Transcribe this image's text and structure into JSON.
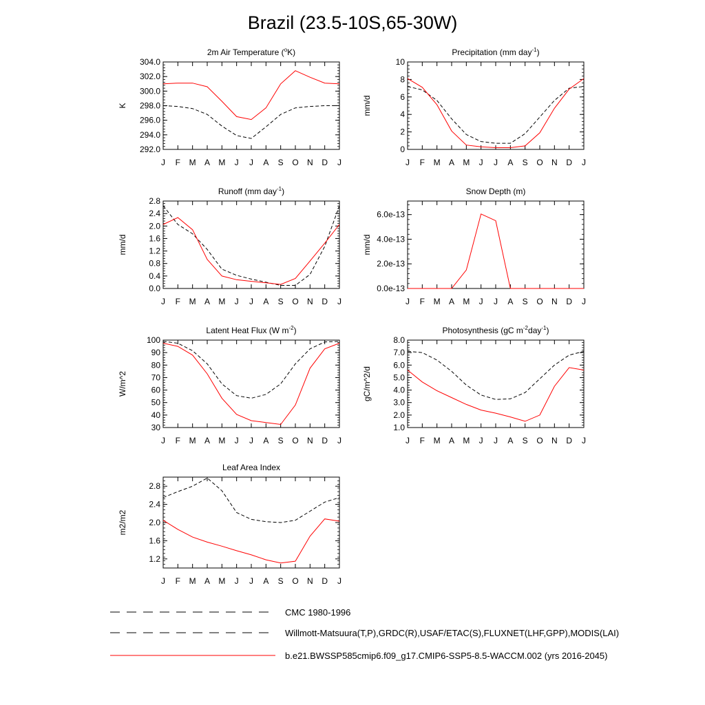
{
  "figure": {
    "title": "Brazil (23.5-10S,65-30W)"
  },
  "months": [
    "J",
    "F",
    "M",
    "A",
    "M",
    "J",
    "J",
    "A",
    "S",
    "O",
    "N",
    "D",
    "J"
  ],
  "legend": {
    "items": [
      {
        "label": "CMC 1980-1996",
        "color": "#000000",
        "style": "dashed"
      },
      {
        "label": "Willmott-Matsuura(T,P),GRDC(R),USAF/ETAC(S),FLUXNET(LHF,GPP),MODIS(LAI)",
        "color": "#000000",
        "style": "dashed"
      },
      {
        "label": "b.e21.BWSSP585cmip6.f09_g17.CMIP6-SSP5-8.5-WACCM.002 (yrs 2016-2045)",
        "color": "#ff0000",
        "style": "solid"
      }
    ]
  },
  "chart_data": [
    {
      "type": "line",
      "title": "2m Air Temperature (°K)",
      "title_base": "2m Air Temperature (",
      "title_sup": "o",
      "title_tail": "K)",
      "ylabel": "K",
      "ylim": [
        292,
        304
      ],
      "yticks": [
        292,
        294,
        296,
        298,
        300,
        302,
        304
      ],
      "ytick_labels": [
        "292.0",
        "294.0",
        "296.0",
        "298.0",
        "300.0",
        "302.0",
        "304.0"
      ],
      "x": [
        "J",
        "F",
        "M",
        "A",
        "M",
        "J",
        "J",
        "A",
        "S",
        "O",
        "N",
        "D",
        "J"
      ],
      "series": [
        {
          "values": [
            298.0,
            297.9,
            297.6,
            296.8,
            295.2,
            293.9,
            293.5,
            295.1,
            296.8,
            297.7,
            297.9,
            298.0,
            298.0
          ],
          "color": "#000000",
          "dash": true
        },
        {
          "values": [
            301.0,
            301.1,
            301.1,
            300.6,
            298.6,
            296.5,
            296.1,
            297.7,
            301.0,
            302.8,
            301.9,
            301.1,
            301.0
          ],
          "color": "#ff0000",
          "dash": false
        }
      ]
    },
    {
      "type": "line",
      "title": "Precipitation (mm day-1)",
      "title_base": "Precipitation (mm day",
      "title_sup": "-1",
      "title_tail": ")",
      "ylabel": "mm/d",
      "ylim": [
        0,
        10
      ],
      "yticks": [
        0,
        2,
        4,
        6,
        8,
        10
      ],
      "ytick_labels": [
        "0",
        "2",
        "4",
        "6",
        "8",
        "10"
      ],
      "x": [
        "J",
        "F",
        "M",
        "A",
        "M",
        "J",
        "J",
        "A",
        "S",
        "O",
        "N",
        "D",
        "J"
      ],
      "series": [
        {
          "values": [
            7.2,
            6.8,
            5.6,
            3.5,
            1.7,
            0.9,
            0.7,
            0.7,
            1.8,
            3.7,
            5.6,
            7.0,
            7.2
          ],
          "color": "#000000",
          "dash": true
        },
        {
          "values": [
            8.1,
            7.1,
            5.1,
            2.1,
            0.5,
            0.3,
            0.2,
            0.2,
            0.4,
            1.9,
            4.7,
            6.9,
            8.1
          ],
          "color": "#ff0000",
          "dash": false
        }
      ]
    },
    {
      "type": "line",
      "title": "Runoff (mm day-1)",
      "title_base": "Runoff (mm day",
      "title_sup": "-1",
      "title_tail": ")",
      "ylabel": "mm/d",
      "ylim": [
        0,
        2.8
      ],
      "yticks": [
        0,
        0.4,
        0.8,
        1.2,
        1.6,
        2.0,
        2.4,
        2.8
      ],
      "ytick_labels": [
        "0.0",
        "0.4",
        "0.8",
        "1.2",
        "1.6",
        "2.0",
        "2.4",
        "2.8"
      ],
      "x": [
        "J",
        "F",
        "M",
        "A",
        "M",
        "J",
        "J",
        "A",
        "S",
        "O",
        "N",
        "D",
        "J"
      ],
      "series": [
        {
          "values": [
            2.65,
            2.05,
            1.75,
            1.25,
            0.62,
            0.42,
            0.3,
            0.2,
            0.1,
            0.1,
            0.45,
            1.35,
            2.65
          ],
          "color": "#000000",
          "dash": true
        },
        {
          "values": [
            2.05,
            2.27,
            1.88,
            0.93,
            0.4,
            0.28,
            0.23,
            0.18,
            0.13,
            0.32,
            0.88,
            1.45,
            2.05
          ],
          "color": "#ff0000",
          "dash": false
        }
      ]
    },
    {
      "type": "line",
      "title": "Snow Depth (m)",
      "title_base": "Snow Depth (m)",
      "title_sup": "",
      "title_tail": "",
      "ylabel": "mm/d",
      "ylim": [
        0,
        7.1
      ],
      "yticks": [
        0,
        2,
        4,
        6
      ],
      "ytick_labels": [
        "0.0e-13",
        "2.0e-13",
        "4.0e-13",
        "6.0e-13"
      ],
      "x": [
        "J",
        "F",
        "M",
        "A",
        "M",
        "J",
        "J",
        "A",
        "S",
        "O",
        "N",
        "D",
        "J"
      ],
      "series": [
        {
          "values": [
            0,
            0,
            0,
            0,
            0,
            0,
            0,
            0,
            0,
            0,
            0,
            0,
            0
          ],
          "color": "#000000",
          "dash": true
        },
        {
          "values": [
            0,
            0,
            0,
            0,
            1.5,
            6.05,
            5.5,
            0,
            0,
            0,
            0,
            0,
            0
          ],
          "color": "#ff0000",
          "dash": false
        }
      ]
    },
    {
      "type": "line",
      "title": "Latent Heat Flux (W m-2)",
      "title_base": "Latent Heat Flux (W m",
      "title_sup": "-2",
      "title_tail": ")",
      "ylabel": "W/m^2",
      "ylim": [
        30,
        100
      ],
      "yticks": [
        30,
        40,
        50,
        60,
        70,
        80,
        90,
        100
      ],
      "ytick_labels": [
        "30",
        "40",
        "50",
        "60",
        "70",
        "80",
        "90",
        "100"
      ],
      "x": [
        "J",
        "F",
        "M",
        "A",
        "M",
        "J",
        "J",
        "A",
        "S",
        "O",
        "N",
        "D",
        "J"
      ],
      "series": [
        {
          "values": [
            99,
            97.5,
            91.5,
            81,
            65,
            55.5,
            53.5,
            56.5,
            65,
            81,
            93,
            98.5,
            99
          ],
          "color": "#000000",
          "dash": true
        },
        {
          "values": [
            97.5,
            95,
            88,
            73,
            53.5,
            40.5,
            35.5,
            34,
            32.5,
            48,
            77.5,
            93,
            97.5
          ],
          "color": "#ff0000",
          "dash": false
        }
      ]
    },
    {
      "type": "line",
      "title": "Photosynthesis (gC m-2day-1)",
      "title_base": "Photosynthesis (gC m",
      "title_sup": "-2",
      "title_tail": "day",
      "title_sup2": "-1",
      "title_tail2": ")",
      "ylabel": "gC/m^2/d",
      "ylim": [
        1,
        8
      ],
      "yticks": [
        1,
        2,
        3,
        4,
        5,
        6,
        7,
        8
      ],
      "ytick_labels": [
        "1.0",
        "2.0",
        "3.0",
        "4.0",
        "5.0",
        "6.0",
        "7.0",
        "8.0"
      ],
      "x": [
        "J",
        "F",
        "M",
        "A",
        "M",
        "J",
        "J",
        "A",
        "S",
        "O",
        "N",
        "D",
        "J"
      ],
      "series": [
        {
          "values": [
            7.1,
            7.0,
            6.4,
            5.5,
            4.4,
            3.6,
            3.25,
            3.3,
            3.8,
            4.9,
            6.0,
            6.8,
            7.1
          ],
          "color": "#000000",
          "dash": true
        },
        {
          "values": [
            5.6,
            4.65,
            3.95,
            3.4,
            2.85,
            2.4,
            2.15,
            1.85,
            1.5,
            2.0,
            4.3,
            5.8,
            5.6
          ],
          "color": "#ff0000",
          "dash": false
        }
      ]
    },
    {
      "type": "line",
      "title": "Leaf Area Index",
      "title_base": "Leaf Area Index",
      "title_sup": "",
      "title_tail": "",
      "ylabel": "m2/m2",
      "ylim": [
        1.0,
        3.0
      ],
      "yticks": [
        1.2,
        1.6,
        2.0,
        2.4,
        2.8
      ],
      "ytick_labels": [
        "1.2",
        "1.6",
        "2.0",
        "2.4",
        "2.8"
      ],
      "x": [
        "J",
        "F",
        "M",
        "A",
        "M",
        "J",
        "J",
        "A",
        "S",
        "O",
        "N",
        "D",
        "J"
      ],
      "series": [
        {
          "values": [
            2.55,
            2.68,
            2.8,
            2.98,
            2.7,
            2.22,
            2.07,
            2.02,
            2.0,
            2.05,
            2.25,
            2.45,
            2.55
          ],
          "color": "#000000",
          "dash": true
        },
        {
          "values": [
            2.05,
            1.85,
            1.68,
            1.57,
            1.48,
            1.38,
            1.29,
            1.18,
            1.11,
            1.15,
            1.7,
            2.08,
            2.03
          ],
          "color": "#ff0000",
          "dash": false
        }
      ]
    }
  ]
}
